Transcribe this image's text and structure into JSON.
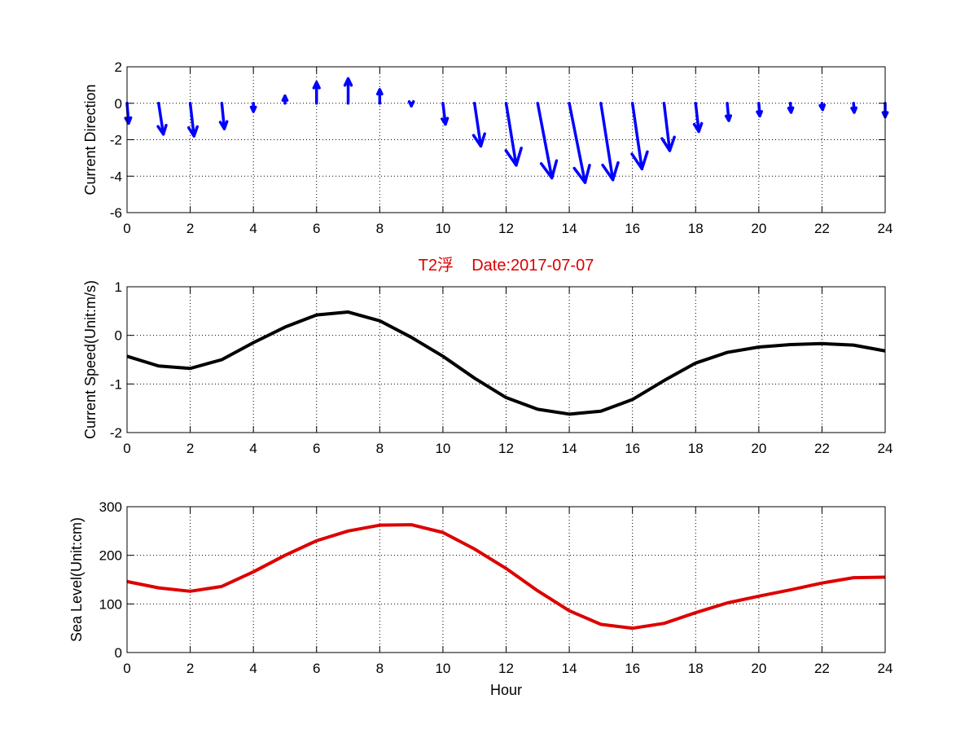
{
  "colors": {
    "arrows": "#0000ff",
    "speed": "#000000",
    "level": "#dd0000",
    "title": "#dd0000"
  },
  "chart_data": [
    {
      "type": "quiver",
      "title": "",
      "xlabel": "",
      "ylabel": "Current Direction",
      "xlim": [
        0,
        24
      ],
      "ylim": [
        -6,
        2
      ],
      "xticks": [
        "0",
        "2",
        "4",
        "6",
        "8",
        "10",
        "12",
        "14",
        "16",
        "18",
        "20",
        "22",
        "24"
      ],
      "yticks": [
        "2",
        "0",
        "-2",
        "-4",
        "-6"
      ],
      "grid": true,
      "x": [
        0,
        1,
        2,
        3,
        4,
        5,
        6,
        7,
        8,
        9,
        10,
        11,
        12,
        13,
        14,
        15,
        16,
        17,
        18,
        19,
        20,
        21,
        22,
        23,
        24
      ],
      "u": [
        0.05,
        0.15,
        0.12,
        0.08,
        0.0,
        0.0,
        0.0,
        0.0,
        0.0,
        0.0,
        0.08,
        0.2,
        0.32,
        0.45,
        0.5,
        0.38,
        0.3,
        0.18,
        0.1,
        0.05,
        0.03,
        0.02,
        0.02,
        0.02,
        0.0
      ],
      "v": [
        -1.1,
        -1.7,
        -1.8,
        -1.4,
        -0.45,
        0.4,
        1.15,
        1.35,
        0.75,
        -0.15,
        -1.15,
        -2.35,
        -3.4,
        -4.1,
        -4.35,
        -4.2,
        -3.6,
        -2.6,
        -1.55,
        -0.95,
        -0.7,
        -0.5,
        -0.35,
        -0.5,
        -0.75
      ]
    },
    {
      "type": "line",
      "title": "T2浮    Date:2017-07-07",
      "xlabel": "",
      "ylabel": "Current Speed(Unit:m/s)",
      "xlim": [
        0,
        24
      ],
      "ylim": [
        -2,
        1
      ],
      "xticks": [
        "0",
        "2",
        "4",
        "6",
        "8",
        "10",
        "12",
        "14",
        "16",
        "18",
        "20",
        "22",
        "24"
      ],
      "yticks": [
        "1",
        "0",
        "-1",
        "-2"
      ],
      "grid": true,
      "x": [
        0,
        1,
        2,
        3,
        4,
        5,
        6,
        7,
        8,
        9,
        10,
        11,
        12,
        13,
        14,
        15,
        16,
        17,
        18,
        19,
        20,
        21,
        22,
        23,
        24
      ],
      "y": [
        -0.43,
        -0.63,
        -0.68,
        -0.5,
        -0.15,
        0.17,
        0.42,
        0.48,
        0.3,
        -0.04,
        -0.43,
        -0.88,
        -1.28,
        -1.52,
        -1.62,
        -1.56,
        -1.32,
        -0.93,
        -0.57,
        -0.35,
        -0.24,
        -0.19,
        -0.17,
        -0.2,
        -0.32
      ]
    },
    {
      "type": "line",
      "title": "",
      "xlabel": "Hour",
      "ylabel": "Sea Level(Unit:cm)",
      "xlim": [
        0,
        24
      ],
      "ylim": [
        0,
        300
      ],
      "xticks": [
        "0",
        "2",
        "4",
        "6",
        "8",
        "10",
        "12",
        "14",
        "16",
        "18",
        "20",
        "22",
        "24"
      ],
      "yticks": [
        "300",
        "200",
        "100",
        "0"
      ],
      "grid": true,
      "x": [
        0,
        1,
        2,
        3,
        4,
        5,
        6,
        7,
        8,
        9,
        10,
        11,
        12,
        13,
        14,
        15,
        16,
        17,
        18,
        19,
        20,
        21,
        22,
        23,
        24
      ],
      "y": [
        146,
        133,
        126,
        136,
        166,
        200,
        230,
        250,
        262,
        263,
        247,
        213,
        173,
        127,
        86,
        58,
        50,
        60,
        82,
        102,
        116,
        129,
        143,
        154,
        155
      ]
    }
  ]
}
